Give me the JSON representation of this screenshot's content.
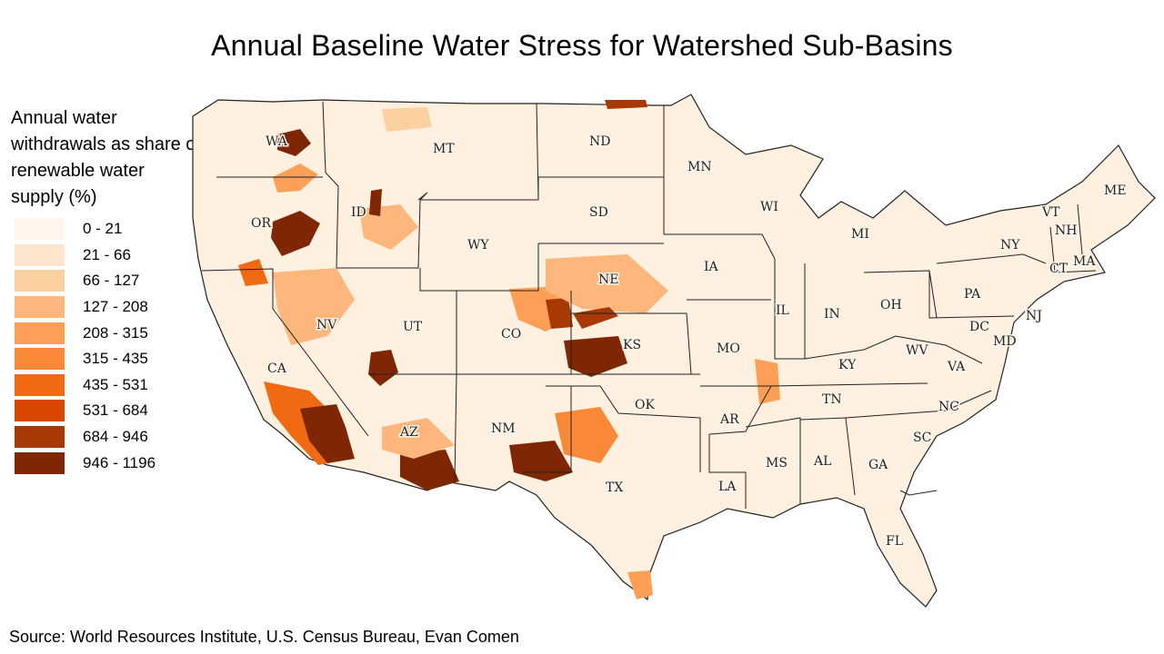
{
  "title": "Annual Baseline Water Stress for Watershed Sub-Basins",
  "legend": {
    "title": "Annual water withdrawals as share of renewable water supply (%)",
    "bins": [
      {
        "label": "0 - 21",
        "color": "#fff5eb"
      },
      {
        "label": "21 - 66",
        "color": "#fee6ce"
      },
      {
        "label": "66 - 127",
        "color": "#fdd0a2"
      },
      {
        "label": "127 - 208",
        "color": "#fdb67b"
      },
      {
        "label": "208 - 315",
        "color": "#fd9f56"
      },
      {
        "label": "315 - 435",
        "color": "#f98937"
      },
      {
        "label": "435 - 531",
        "color": "#f16913"
      },
      {
        "label": "531 - 684",
        "color": "#d94801"
      },
      {
        "label": "684 - 946",
        "color": "#a83806"
      },
      {
        "label": "946 - 1196",
        "color": "#7f2704"
      }
    ]
  },
  "states": [
    "WA",
    "OR",
    "CA",
    "ID",
    "NV",
    "MT",
    "WY",
    "UT",
    "AZ",
    "CO",
    "NM",
    "ND",
    "SD",
    "NE",
    "KS",
    "OK",
    "TX",
    "MN",
    "IA",
    "MO",
    "AR",
    "LA",
    "WI",
    "IL",
    "MS",
    "MI",
    "IN",
    "KY",
    "TN",
    "AL",
    "OH",
    "GA",
    "FL",
    "SC",
    "NC",
    "WV",
    "VA",
    "PA",
    "NY",
    "MD",
    "DC",
    "NJ",
    "CT",
    "MA",
    "VT",
    "NH",
    "ME"
  ],
  "source": "Source: World Resources Institute, U.S. Census Bureau, Evan Comen"
}
